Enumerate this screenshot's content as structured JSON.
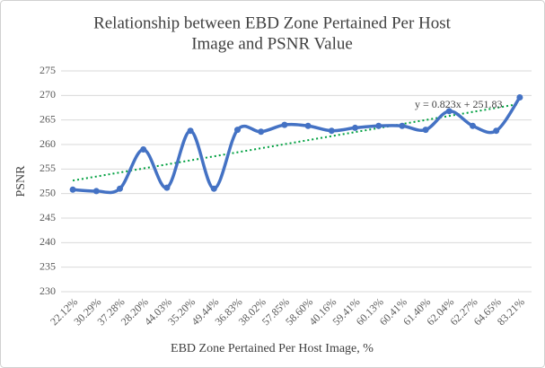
{
  "chart_data": {
    "type": "line",
    "title": [
      "Relationship between EBD Zone Pertained Per Host",
      "Image and PSNR Value"
    ],
    "x_label": "EBD Zone Pertained Per Host Image, %",
    "y_label": "PSNR",
    "categories": [
      "22.12%",
      "30.29%",
      "37.28%",
      "28.20%",
      "44.03%",
      "35.20%",
      "49.44%",
      "36.83%",
      "38.02%",
      "57.85%",
      "58.60%",
      "40.16%",
      "59.41%",
      "60.13%",
      "60.41%",
      "61.40%",
      "62.04%",
      "62.27%",
      "64.65%",
      "83.21%"
    ],
    "values": [
      250.8,
      250.5,
      251,
      259,
      251.2,
      262.8,
      251,
      263,
      262.6,
      264,
      263.8,
      262.8,
      263.4,
      263.8,
      263.8,
      263,
      266.8,
      263.8,
      262.8,
      269.6
    ],
    "color": "#4472c4",
    "smooth": true,
    "trendline": {
      "slope": 0.823,
      "intercept": 251.83,
      "label": "y = 0.823x + 251.83",
      "color": "#00a040"
    },
    "ylim": [
      230,
      275
    ],
    "yticks": [
      230,
      235,
      240,
      245,
      250,
      255,
      260,
      265,
      270,
      275
    ],
    "grid": true
  }
}
